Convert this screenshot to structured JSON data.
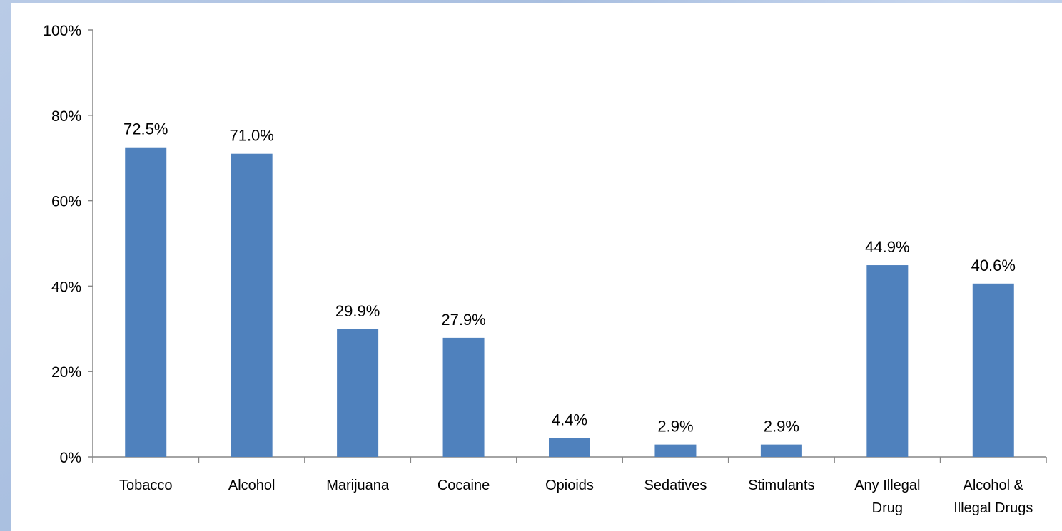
{
  "chart_data": {
    "type": "bar",
    "title": "",
    "xlabel": "",
    "ylabel": "",
    "categories": [
      [
        "Tobacco"
      ],
      [
        "Alcohol"
      ],
      [
        "Marijuana"
      ],
      [
        "Cocaine"
      ],
      [
        "Opioids"
      ],
      [
        "Sedatives"
      ],
      [
        "Stimulants"
      ],
      [
        "Any Illegal",
        "Drug"
      ],
      [
        "Alcohol &",
        "Illegal Drugs"
      ]
    ],
    "values": [
      72.5,
      71.0,
      29.9,
      27.9,
      4.4,
      2.9,
      2.9,
      44.9,
      40.6
    ],
    "value_labels": [
      "72.5%",
      "71.0%",
      "29.9%",
      "27.9%",
      "4.4%",
      "2.9%",
      "2.9%",
      "44.9%",
      "40.6%"
    ],
    "ylim": [
      0,
      100
    ],
    "yticks": [
      0,
      20,
      40,
      60,
      80,
      100
    ],
    "ytick_labels": [
      "0%",
      "20%",
      "40%",
      "60%",
      "80%",
      "100%"
    ],
    "grid": false,
    "legend": "none",
    "bar_color": "#4f81bd"
  }
}
